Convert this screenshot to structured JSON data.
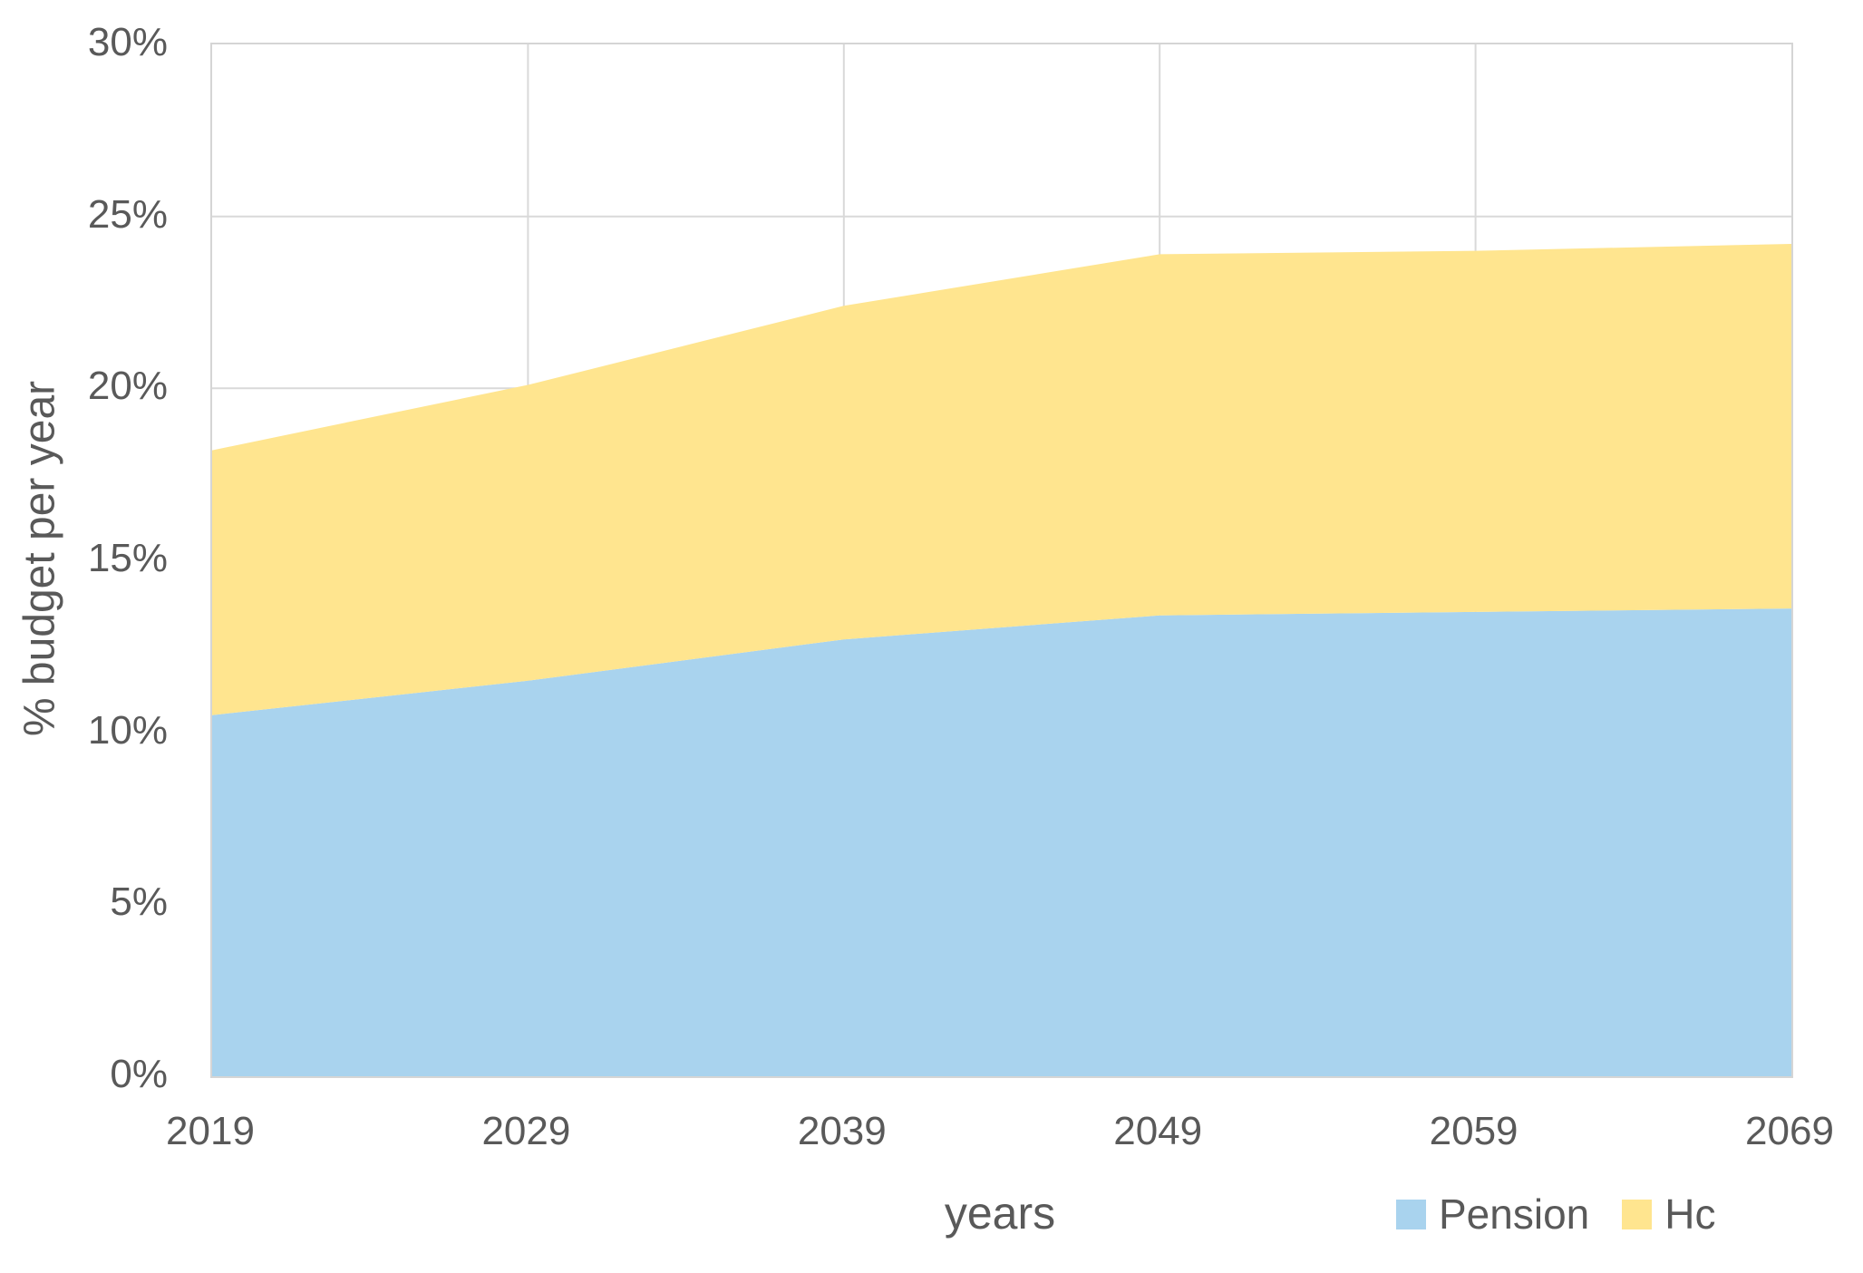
{
  "chart_data": {
    "type": "area",
    "stacked": true,
    "title": "",
    "xlabel": "years",
    "ylabel": "% budget per year",
    "categories": [
      "2019",
      "2029",
      "2039",
      "2049",
      "2059",
      "2069"
    ],
    "series": [
      {
        "name": "Pension",
        "color": "#A9D3EE",
        "values": [
          10.5,
          11.5,
          12.7,
          13.4,
          13.5,
          13.6
        ]
      },
      {
        "name": "Hc",
        "color": "#FFE58F",
        "values": [
          7.7,
          8.6,
          9.7,
          10.5,
          10.5,
          10.6
        ]
      }
    ],
    "stacked_totals": [
      18.2,
      20.1,
      22.4,
      23.9,
      24.0,
      24.2
    ],
    "ylim": [
      0,
      30
    ],
    "y_ticks": [
      {
        "value": 0,
        "label": "0%"
      },
      {
        "value": 5,
        "label": "5%"
      },
      {
        "value": 10,
        "label": "10%"
      },
      {
        "value": 15,
        "label": "15%"
      },
      {
        "value": 20,
        "label": "20%"
      },
      {
        "value": 25,
        "label": "25%"
      },
      {
        "value": 30,
        "label": "30%"
      }
    ],
    "grid": true,
    "legend_position": "bottom-right",
    "colors": {
      "grid": "#D9D9D9",
      "plot_border": "#D5D5D5",
      "axis_text": "#595959",
      "background": "#FFFFFF"
    }
  }
}
